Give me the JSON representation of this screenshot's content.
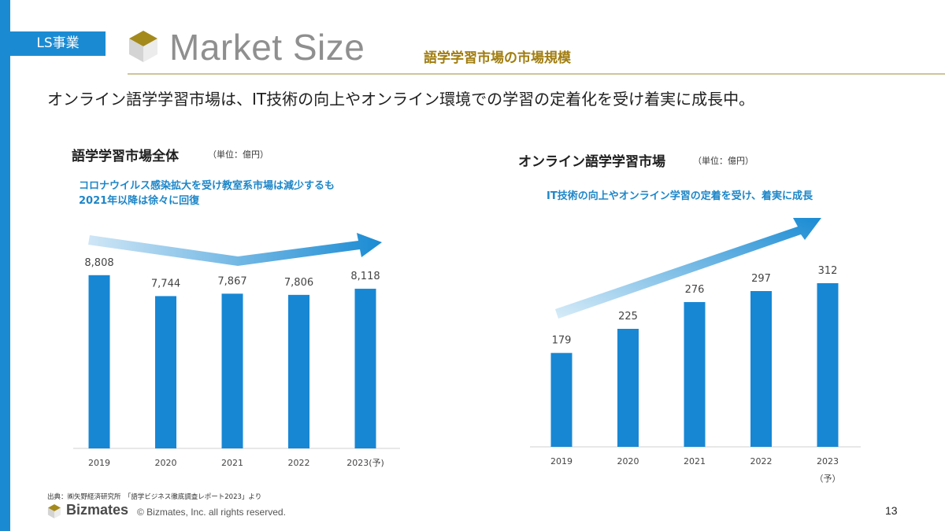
{
  "header": {
    "segment_tag": "LS事業",
    "title": "Market Size",
    "subtitle": "語学学習市場の市場規模"
  },
  "headline": "オンライン語学学習市場は、IT技術の向上やオンライン環境での学習の定着化を受け着実に成長中。",
  "colors": {
    "accent_blue": "#1a8bd3",
    "bar_blue": "#1787d4",
    "gold": "#a17d10",
    "annotation_blue": "#1e86c8"
  },
  "icons": {
    "header_logo": "cube-logo-icon",
    "footer_logo": "cube-logo-icon"
  },
  "chart_data": [
    {
      "type": "bar",
      "title": "語学学習市場全体",
      "unit": "（単位：億円）",
      "annotation": [
        "コロナウイルス感染拡大を受け教室系市場は減少するも",
        "2021年以降は徐々に回復"
      ],
      "categories": [
        "2019",
        "2020",
        "2021",
        "2022",
        "2023(予)"
      ],
      "values": [
        8808,
        7744,
        7867,
        7806,
        8118
      ],
      "value_labels": [
        "8,808",
        "7,744",
        "7,867",
        "7,806",
        "8,118"
      ],
      "trend_arrow": "dip-then-rise",
      "xlabel": "",
      "ylabel": "",
      "ylim": [
        0,
        11000
      ],
      "grid": false
    },
    {
      "type": "bar",
      "title": "オンライン語学学習市場",
      "unit": "（単位：億円）",
      "annotation": [
        "IT技術の向上やオンライン学習の定着を受け、着実に成長"
      ],
      "categories": [
        "2019",
        "2020",
        "2021",
        "2022",
        "2023"
      ],
      "category_sublabels": [
        "",
        "",
        "",
        "",
        "（予）"
      ],
      "values": [
        179,
        225,
        276,
        297,
        312
      ],
      "value_labels": [
        "179",
        "225",
        "276",
        "297",
        "312"
      ],
      "trend_arrow": "rising",
      "xlabel": "",
      "ylabel": "",
      "ylim": [
        0,
        375
      ],
      "grid": false
    }
  ],
  "footer": {
    "source": "出典：㈱矢野経済研究所　「語学ビジネス徹底調査レポート2023」より",
    "brand": "Bizmates",
    "copyright": "© Bizmates, Inc. all rights reserved.",
    "page_number": "13"
  }
}
